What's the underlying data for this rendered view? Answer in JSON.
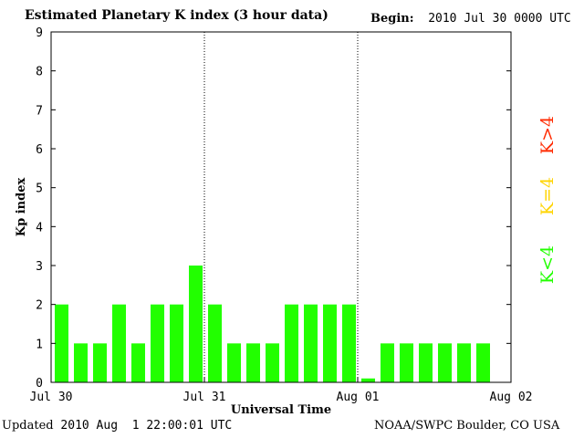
{
  "header": {
    "title": "Estimated Planetary K index (3 hour data)",
    "begin_label": "Begin:",
    "begin_value": "2010 Jul 30 0000 UTC"
  },
  "footer": {
    "updated_label": "Updated",
    "updated_value": "2010 Aug  1 22:00:01 UTC",
    "credit": "NOAA/SWPC Boulder, CO USA"
  },
  "legend": {
    "high": {
      "label": "K>4",
      "color": "#ff2a00"
    },
    "equal": {
      "label": "K=4",
      "color": "#ffd400"
    },
    "low": {
      "label": "K<4",
      "color": "#22ff00"
    }
  },
  "chart_data": {
    "type": "bar",
    "title": "Estimated Planetary K index (3 hour data)",
    "xlabel": "Universal Time",
    "ylabel": "Kp index",
    "ylim": [
      0,
      9
    ],
    "yticks": [
      0,
      1,
      2,
      3,
      4,
      5,
      6,
      7,
      8,
      9
    ],
    "x_tick_labels": [
      "Jul 30",
      "Jul 31",
      "Aug 01",
      "Aug 02"
    ],
    "categories": [
      "Jul 30 00",
      "Jul 30 03",
      "Jul 30 06",
      "Jul 30 09",
      "Jul 30 12",
      "Jul 30 15",
      "Jul 30 18",
      "Jul 30 21",
      "Jul 31 00",
      "Jul 31 03",
      "Jul 31 06",
      "Jul 31 09",
      "Jul 31 12",
      "Jul 31 15",
      "Jul 31 18",
      "Jul 31 21",
      "Aug 01 00",
      "Aug 01 03",
      "Aug 01 06",
      "Aug 01 09",
      "Aug 01 12",
      "Aug 01 15",
      "Aug 01 18"
    ],
    "values": [
      2,
      1,
      1,
      2,
      1,
      2,
      2,
      3,
      2,
      1,
      1,
      1,
      2,
      2,
      2,
      2,
      0.1,
      1,
      1,
      1,
      1,
      1,
      1
    ],
    "bar_color": "#22ff00",
    "day_dividers": "dotted",
    "grid": false
  }
}
